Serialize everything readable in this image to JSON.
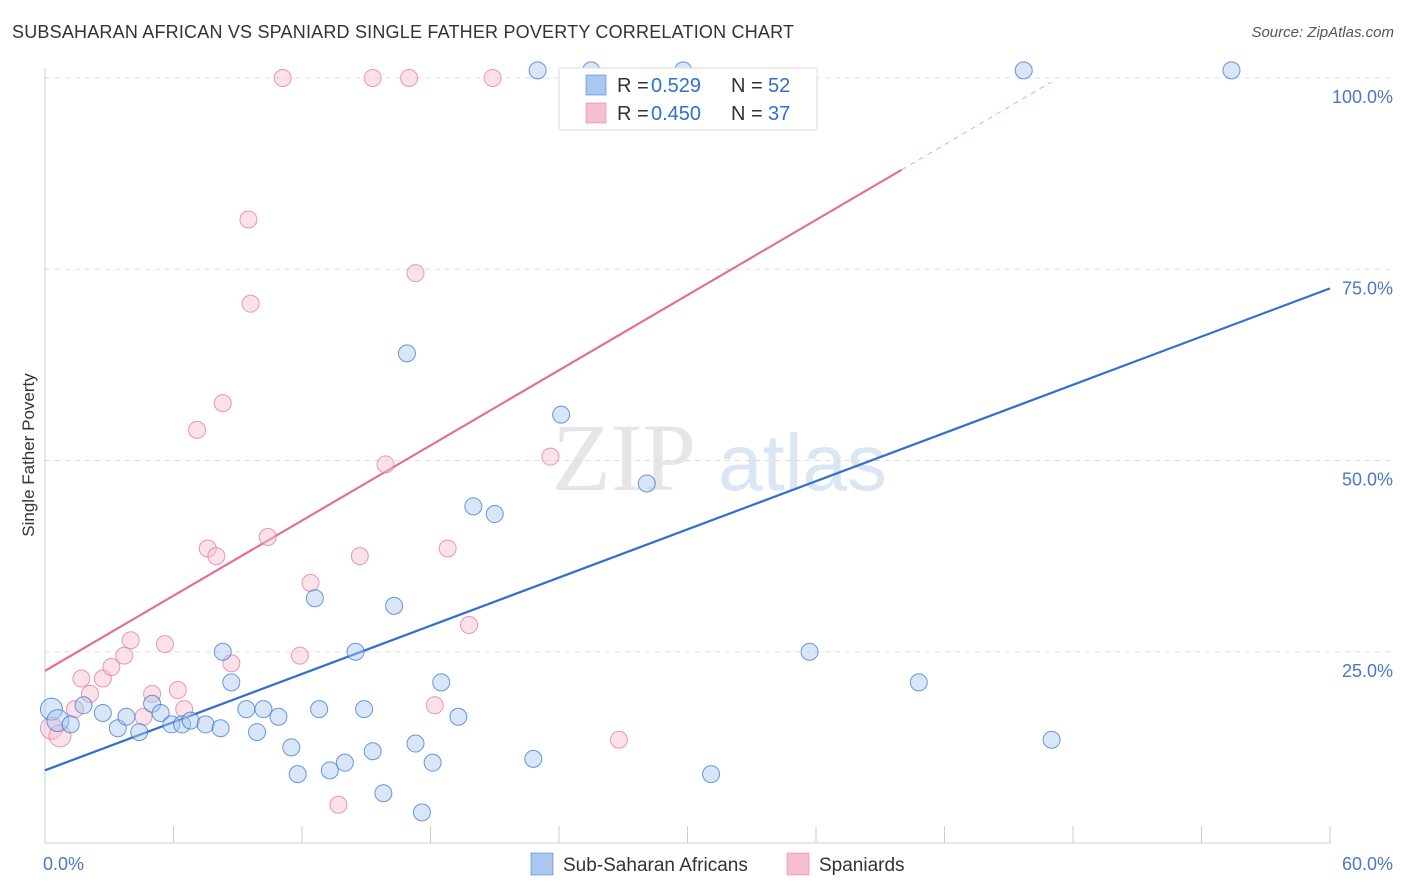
{
  "title": "SUBSAHARAN AFRICAN VS SPANIARD SINGLE FATHER POVERTY CORRELATION CHART",
  "source": "Source: ZipAtlas.com",
  "watermark": {
    "zip": "ZIP",
    "atlas": "atlas"
  },
  "colors": {
    "blue": "#2f6fd0",
    "pink": "#e0709a",
    "blue_fill": "#a9c8f0",
    "pink_fill": "#f6bfd0"
  },
  "chart_data": {
    "type": "scatter",
    "xlabel": "",
    "ylabel": "Single Father Poverty",
    "xlim": [
      0,
      60
    ],
    "ylim": [
      0,
      100
    ],
    "x_tick_labels": [
      {
        "value": 0,
        "label": "0.0%"
      },
      {
        "value": 60,
        "label": "60.0%"
      }
    ],
    "y_tick_labels": [
      {
        "value": 25,
        "label": "25.0%"
      },
      {
        "value": 50,
        "label": "50.0%"
      },
      {
        "value": 75,
        "label": "75.0%"
      },
      {
        "value": 100,
        "label": "100.0%"
      }
    ],
    "legend": {
      "position": "top-center",
      "entries": [
        {
          "r_label": "R =",
          "r_value": "0.529",
          "n_label": "N =",
          "n_value": "52"
        },
        {
          "r_label": "R =",
          "r_value": "0.450",
          "n_label": "N =",
          "n_value": "37"
        }
      ]
    },
    "series": [
      {
        "name": "Sub-Saharan Africans",
        "color": "#2f6fd0",
        "trend": {
          "x0": 0,
          "y0": 9.5,
          "x1": 60,
          "y1": 72.5
        },
        "points": [
          [
            0.3,
            17.5
          ],
          [
            0.6,
            16.0
          ],
          [
            1.2,
            15.5
          ],
          [
            1.8,
            18.0
          ],
          [
            2.7,
            17.0
          ],
          [
            3.4,
            15.0
          ],
          [
            3.8,
            16.5
          ],
          [
            4.4,
            14.5
          ],
          [
            5.0,
            18.2
          ],
          [
            5.4,
            17.0
          ],
          [
            5.9,
            15.5
          ],
          [
            6.4,
            15.5
          ],
          [
            6.8,
            16.0
          ],
          [
            7.5,
            15.5
          ],
          [
            8.2,
            15.0
          ],
          [
            8.3,
            25.0
          ],
          [
            8.7,
            21.0
          ],
          [
            9.4,
            17.5
          ],
          [
            9.9,
            14.5
          ],
          [
            10.2,
            17.5
          ],
          [
            10.9,
            16.5
          ],
          [
            11.5,
            12.5
          ],
          [
            11.8,
            9.0
          ],
          [
            12.6,
            32.0
          ],
          [
            12.8,
            17.5
          ],
          [
            13.3,
            9.5
          ],
          [
            14.0,
            10.5
          ],
          [
            14.5,
            25.0
          ],
          [
            14.9,
            17.5
          ],
          [
            15.3,
            12.0
          ],
          [
            15.8,
            6.5
          ],
          [
            16.3,
            31.0
          ],
          [
            16.9,
            64.0
          ],
          [
            17.3,
            13.0
          ],
          [
            17.6,
            4.0
          ],
          [
            18.1,
            10.5
          ],
          [
            18.5,
            21.0
          ],
          [
            19.3,
            16.5
          ],
          [
            20.0,
            44.0
          ],
          [
            21.0,
            43.0
          ],
          [
            22.8,
            11.0
          ],
          [
            24.1,
            56.0
          ],
          [
            25.5,
            101.0
          ],
          [
            28.1,
            47.0
          ],
          [
            29.8,
            101.0
          ],
          [
            31.1,
            9.0
          ],
          [
            35.7,
            25.0
          ],
          [
            40.8,
            21.0
          ],
          [
            45.7,
            101.0
          ],
          [
            47.0,
            13.5
          ],
          [
            55.4,
            101.0
          ],
          [
            23.0,
            101.0
          ]
        ]
      },
      {
        "name": "Spaniards",
        "color": "#e0709a",
        "trend": {
          "x0": 0,
          "y0": 22.5,
          "x1": 40,
          "y1": 88.0,
          "dash_to": {
            "x": 47,
            "y": 99.5
          }
        },
        "points": [
          [
            0.3,
            15.0
          ],
          [
            0.7,
            14.0
          ],
          [
            1.4,
            17.5
          ],
          [
            1.7,
            21.5
          ],
          [
            2.1,
            19.5
          ],
          [
            2.7,
            21.5
          ],
          [
            3.1,
            23.0
          ],
          [
            3.7,
            24.5
          ],
          [
            4.0,
            26.5
          ],
          [
            4.6,
            16.5
          ],
          [
            5.0,
            19.5
          ],
          [
            5.6,
            26.0
          ],
          [
            6.2,
            20.0
          ],
          [
            6.5,
            17.5
          ],
          [
            7.1,
            54.0
          ],
          [
            7.6,
            38.5
          ],
          [
            8.0,
            37.5
          ],
          [
            8.3,
            57.5
          ],
          [
            8.7,
            23.5
          ],
          [
            9.5,
            81.5
          ],
          [
            9.6,
            70.5
          ],
          [
            10.4,
            40.0
          ],
          [
            11.1,
            100.0
          ],
          [
            11.9,
            24.5
          ],
          [
            12.4,
            34.0
          ],
          [
            13.7,
            5.0
          ],
          [
            14.7,
            37.5
          ],
          [
            15.3,
            100.0
          ],
          [
            15.9,
            49.5
          ],
          [
            17.0,
            100.0
          ],
          [
            17.3,
            74.5
          ],
          [
            18.2,
            18.0
          ],
          [
            18.8,
            38.5
          ],
          [
            19.8,
            28.5
          ],
          [
            20.9,
            100.0
          ],
          [
            23.6,
            50.5
          ],
          [
            26.8,
            13.5
          ]
        ]
      }
    ]
  }
}
